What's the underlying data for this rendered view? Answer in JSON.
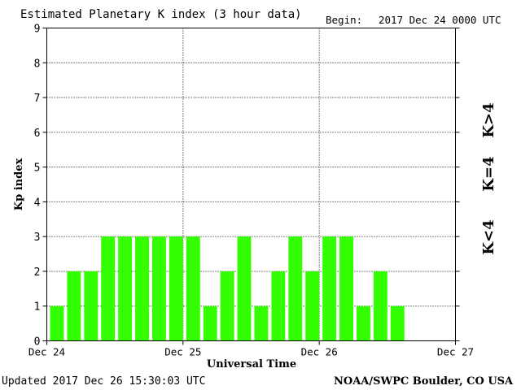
{
  "header": {
    "title": "Estimated Planetary K index (3 hour data)",
    "begin_label": "Begin:",
    "begin_value": "2017 Dec 24 0000 UTC"
  },
  "footer": {
    "updated": "Updated 2017 Dec 26 15:30:03 UTC",
    "source": "NOAA/SWPC Boulder, CO USA"
  },
  "legend": {
    "items": [
      {
        "label": "K<4",
        "color": "#33ff00"
      },
      {
        "label": "K=4",
        "color": "#ffcc00"
      },
      {
        "label": "K>4",
        "color": "#ff3300"
      }
    ]
  },
  "chart_data": {
    "type": "bar",
    "title": "Estimated Planetary K index (3 hour data)",
    "xlabel": "Universal Time",
    "ylabel": "Kp index",
    "ylim": [
      0,
      9
    ],
    "xlim": [
      0,
      72
    ],
    "x_ticks": [
      {
        "label": "Dec 24",
        "value": 0
      },
      {
        "label": "Dec 25",
        "value": 24
      },
      {
        "label": "Dec 26",
        "value": 48
      },
      {
        "label": "Dec 27",
        "value": 72
      }
    ],
    "y_ticks": [
      "0",
      "1",
      "2",
      "3",
      "4",
      "5",
      "6",
      "7",
      "8",
      "9"
    ],
    "grid": true,
    "bar_hours": 3,
    "values": [
      1,
      2,
      2,
      3,
      3,
      3,
      3,
      3,
      3,
      1,
      2,
      3,
      1,
      2,
      3,
      2,
      3,
      3,
      1,
      2,
      1
    ],
    "colors": {
      "low": "#33ff00",
      "mid": "#ffcc00",
      "high": "#ff3300"
    }
  }
}
